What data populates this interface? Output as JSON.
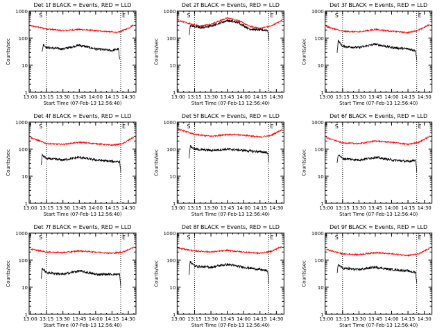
{
  "figure": {
    "background": "#ffffff"
  },
  "chart_data": [
    {
      "type": "line",
      "title": "Det 1f BLACK = Events, RED = LLD",
      "xlabel": "Start Time (07-Feb-13 12:56:40)",
      "ylabel": "Counts/sec",
      "yscale": "log",
      "ylim": [
        1,
        1000
      ],
      "ytick_labels": [
        "1",
        "10",
        "100",
        "1000"
      ],
      "xlim": [
        "12:59",
        "14:37"
      ],
      "xtick_labels": [
        "13:00",
        "13:15",
        "13:30",
        "13:45",
        "14:00",
        "14:15",
        "14:30"
      ],
      "markers": {
        "S_time": "13:15",
        "E_time": "14:23",
        "S_label": "S",
        "E_label": "E"
      },
      "series": [
        {
          "color": "#ff0000",
          "x": [
            "13:00",
            "13:15",
            "13:30",
            "13:45",
            "14:00",
            "14:15",
            "14:20",
            "14:30",
            "14:35"
          ],
          "y": [
            290,
            220,
            190,
            210,
            190,
            170,
            160,
            230,
            320
          ]
        },
        {
          "color": "#000000",
          "x": [
            "13:11",
            "13:12",
            "13:15",
            "13:30",
            "13:45",
            "14:00",
            "14:15",
            "14:21",
            "14:22"
          ],
          "y": [
            30,
            60,
            45,
            40,
            55,
            40,
            35,
            40,
            15
          ]
        }
      ]
    },
    {
      "type": "line",
      "title": "Det 2f BLACK = Events, RED = LLD",
      "xlabel": "Start Time (07-Feb-13 12:56:40)",
      "ylabel": "Counts/sec",
      "yscale": "log",
      "ylim": [
        1,
        1000
      ],
      "ytick_labels": [
        "1",
        "10",
        "100",
        "1000"
      ],
      "xlim": [
        "12:59",
        "14:37"
      ],
      "xtick_labels": [
        "13:00",
        "13:15",
        "13:30",
        "13:45",
        "14:00",
        "14:15",
        "14:30"
      ],
      "markers": {
        "S_time": "13:15",
        "E_time": "14:23",
        "S_label": "S",
        "E_label": "E"
      },
      "series": [
        {
          "color": "#ff0000",
          "x": [
            "13:00",
            "13:10",
            "13:20",
            "13:30",
            "13:45",
            "13:55",
            "14:05",
            "14:15",
            "14:25",
            "14:35"
          ],
          "y": [
            450,
            350,
            280,
            330,
            560,
            450,
            280,
            230,
            280,
            450
          ]
        },
        {
          "color": "#000000",
          "x": [
            "13:10",
            "13:11",
            "13:20",
            "13:30",
            "13:45",
            "13:55",
            "14:05",
            "14:15",
            "14:22",
            "14:23"
          ],
          "y": [
            120,
            300,
            240,
            280,
            450,
            380,
            220,
            200,
            200,
            90
          ]
        }
      ]
    },
    {
      "type": "line",
      "title": "Det 3f BLACK = Events, RED = LLD",
      "xlabel": "Start Time (07-Feb-13 12:56:40)",
      "ylabel": "Counts/sec",
      "yscale": "log",
      "ylim": [
        1,
        1000
      ],
      "ytick_labels": [
        "1",
        "10",
        "100",
        "1000"
      ],
      "xlim": [
        "12:59",
        "14:37"
      ],
      "xtick_labels": [
        "13:00",
        "13:15",
        "13:30",
        "13:45",
        "14:00",
        "14:15",
        "14:30"
      ],
      "markers": {
        "S_time": "13:15",
        "E_time": "14:23",
        "S_label": "S",
        "E_label": "E"
      },
      "series": [
        {
          "color": "#ff0000",
          "x": [
            "13:00",
            "13:15",
            "13:30",
            "13:45",
            "14:00",
            "14:15",
            "14:25",
            "14:35"
          ],
          "y": [
            270,
            180,
            170,
            210,
            180,
            160,
            200,
            320
          ]
        },
        {
          "color": "#000000",
          "x": [
            "13:10",
            "13:11",
            "13:15",
            "13:30",
            "13:45",
            "14:00",
            "14:15",
            "14:22",
            "14:23"
          ],
          "y": [
            30,
            80,
            50,
            45,
            60,
            45,
            40,
            35,
            15
          ]
        }
      ]
    },
    {
      "type": "line",
      "title": "Det 4f BLACK = Events, RED = LLD",
      "xlabel": "Start Time (07-Feb-13 12:56:40)",
      "ylabel": "Counts/sec",
      "yscale": "log",
      "ylim": [
        1,
        1000
      ],
      "ytick_labels": [
        "1",
        "10",
        "100",
        "1000"
      ],
      "xlim": [
        "12:59",
        "14:37"
      ],
      "xtick_labels": [
        "13:00",
        "13:15",
        "13:30",
        "13:45",
        "14:00",
        "14:15",
        "14:30"
      ],
      "markers": {
        "S_time": "13:15",
        "E_time": "14:23",
        "S_label": "S",
        "E_label": "E"
      },
      "series": [
        {
          "color": "#ff0000",
          "x": [
            "13:00",
            "13:15",
            "13:30",
            "13:45",
            "14:00",
            "14:15",
            "14:25",
            "14:35"
          ],
          "y": [
            270,
            160,
            150,
            180,
            160,
            140,
            160,
            280
          ]
        },
        {
          "color": "#000000",
          "x": [
            "13:10",
            "13:11",
            "13:15",
            "13:30",
            "13:45",
            "14:00",
            "14:15",
            "14:22",
            "14:23"
          ],
          "y": [
            25,
            60,
            45,
            40,
            50,
            40,
            35,
            35,
            15
          ]
        }
      ]
    },
    {
      "type": "line",
      "title": "Det 5f BLACK = Events, RED = LLD",
      "xlabel": "Start Time (07-Feb-13 12:56:40)",
      "ylabel": "Counts/sec",
      "yscale": "log",
      "ylim": [
        1,
        1000
      ],
      "ytick_labels": [
        "1",
        "10",
        "100",
        "1000"
      ],
      "xlim": [
        "12:59",
        "14:37"
      ],
      "xtick_labels": [
        "13:00",
        "13:15",
        "13:30",
        "13:45",
        "14:00",
        "14:15",
        "14:30"
      ],
      "markers": {
        "S_time": "13:15",
        "E_time": "14:23",
        "S_label": "S",
        "E_label": "E"
      },
      "series": [
        {
          "color": "#ff0000",
          "x": [
            "13:00",
            "13:15",
            "13:30",
            "13:45",
            "14:00",
            "14:15",
            "14:25",
            "14:35"
          ],
          "y": [
            550,
            350,
            300,
            350,
            330,
            280,
            320,
            520
          ]
        },
        {
          "color": "#000000",
          "x": [
            "13:10",
            "13:11",
            "13:15",
            "13:30",
            "13:45",
            "14:00",
            "14:15",
            "14:22",
            "14:23"
          ],
          "y": [
            50,
            130,
            100,
            90,
            100,
            90,
            80,
            75,
            30
          ]
        }
      ]
    },
    {
      "type": "line",
      "title": "Det 6f BLACK = Events, RED = LLD",
      "xlabel": "Start Time (07-Feb-13 12:56:40)",
      "ylabel": "Counts/sec",
      "yscale": "log",
      "ylim": [
        1,
        1000
      ],
      "ytick_labels": [
        "1",
        "10",
        "100",
        "1000"
      ],
      "xlim": [
        "12:59",
        "14:37"
      ],
      "xtick_labels": [
        "13:00",
        "13:15",
        "13:30",
        "13:45",
        "14:00",
        "14:15",
        "14:30"
      ],
      "markers": {
        "S_time": "13:15",
        "E_time": "14:23",
        "S_label": "S",
        "E_label": "E"
      },
      "series": [
        {
          "color": "#ff0000",
          "x": [
            "13:00",
            "13:15",
            "13:30",
            "13:45",
            "14:00",
            "14:15",
            "14:25",
            "14:35"
          ],
          "y": [
            270,
            170,
            160,
            200,
            180,
            150,
            180,
            300
          ]
        },
        {
          "color": "#000000",
          "x": [
            "13:10",
            "13:11",
            "13:15",
            "13:30",
            "13:45",
            "14:00",
            "14:15",
            "14:22",
            "14:23"
          ],
          "y": [
            30,
            65,
            45,
            40,
            50,
            40,
            35,
            40,
            15
          ]
        }
      ]
    },
    {
      "type": "line",
      "title": "Det 7f BLACK = Events, RED = LLD",
      "xlabel": "Start Time (07-Feb-13 12:56:40)",
      "ylabel": "Counts/sec",
      "yscale": "log",
      "ylim": [
        1,
        1000
      ],
      "ytick_labels": [
        "1",
        "10",
        "100",
        "1000"
      ],
      "xlim": [
        "12:59",
        "14:37"
      ],
      "xtick_labels": [
        "13:00",
        "13:15",
        "13:30",
        "13:45",
        "14:00",
        "14:15",
        "14:30"
      ],
      "markers": {
        "S_time": "13:15",
        "E_time": "14:23",
        "S_label": "S",
        "E_label": "E"
      },
      "series": [
        {
          "color": "#ff0000",
          "x": [
            "13:00",
            "13:15",
            "13:30",
            "13:45",
            "14:00",
            "14:15",
            "14:25",
            "14:35"
          ],
          "y": [
            260,
            200,
            190,
            220,
            200,
            180,
            200,
            300
          ]
        },
        {
          "color": "#000000",
          "x": [
            "13:10",
            "13:11",
            "13:15",
            "13:30",
            "13:45",
            "14:00",
            "14:15",
            "14:22",
            "14:23"
          ],
          "y": [
            20,
            50,
            35,
            30,
            40,
            30,
            30,
            30,
            10
          ]
        }
      ]
    },
    {
      "type": "line",
      "title": "Det 8f BLACK = Events, RED = LLD",
      "xlabel": "Start Time (07-Feb-13 12:56:40)",
      "ylabel": "Counts/sec",
      "yscale": "log",
      "ylim": [
        1,
        1000
      ],
      "ytick_labels": [
        "1",
        "10",
        "100",
        "1000"
      ],
      "xlim": [
        "12:59",
        "14:37"
      ],
      "xtick_labels": [
        "13:00",
        "13:15",
        "13:30",
        "13:45",
        "14:00",
        "14:15",
        "14:30"
      ],
      "markers": {
        "S_time": "13:15",
        "E_time": "14:23",
        "S_label": "S",
        "E_label": "E"
      },
      "series": [
        {
          "color": "#ff0000",
          "x": [
            "13:00",
            "13:15",
            "13:30",
            "13:45",
            "14:00",
            "14:15",
            "14:25",
            "14:35"
          ],
          "y": [
            280,
            220,
            200,
            230,
            200,
            180,
            210,
            320
          ]
        },
        {
          "color": "#000000",
          "x": [
            "13:10",
            "13:11",
            "13:15",
            "13:30",
            "13:45",
            "14:00",
            "14:15",
            "14:22",
            "14:23"
          ],
          "y": [
            30,
            90,
            60,
            55,
            70,
            55,
            45,
            40,
            15
          ]
        }
      ]
    },
    {
      "type": "line",
      "title": "Det 9f BLACK = Events, RED = LLD",
      "xlabel": "Start Time (07-Feb-13 12:56:40)",
      "ylabel": "Counts/sec",
      "yscale": "log",
      "ylim": [
        1,
        1000
      ],
      "ytick_labels": [
        "1",
        "10",
        "100",
        "1000"
      ],
      "xlim": [
        "12:59",
        "14:37"
      ],
      "xtick_labels": [
        "13:00",
        "13:15",
        "13:30",
        "13:45",
        "14:00",
        "14:15",
        "14:30"
      ],
      "markers": {
        "S_time": "13:15",
        "E_time": "14:23",
        "S_label": "S",
        "E_label": "E"
      },
      "series": [
        {
          "color": "#ff0000",
          "x": [
            "13:00",
            "13:15",
            "13:30",
            "13:45",
            "14:00",
            "14:15",
            "14:25",
            "14:35"
          ],
          "y": [
            250,
            170,
            160,
            190,
            170,
            150,
            170,
            280
          ]
        },
        {
          "color": "#000000",
          "x": [
            "13:10",
            "13:11",
            "13:15",
            "13:30",
            "13:45",
            "14:00",
            "14:15",
            "14:22",
            "14:23"
          ],
          "y": [
            30,
            70,
            50,
            45,
            55,
            45,
            40,
            35,
            15
          ]
        }
      ]
    }
  ]
}
